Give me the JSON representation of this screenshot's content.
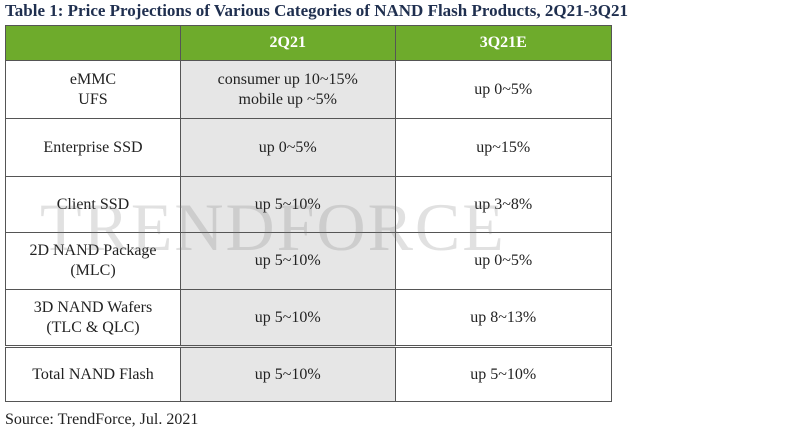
{
  "title": "Table 1: Price Projections of Various Categories of NAND Flash Products, 2Q21-3Q21",
  "table": {
    "header": [
      "",
      "2Q21",
      "3Q21E"
    ],
    "rows": [
      [
        [
          "eMMC",
          "UFS"
        ],
        [
          "consumer up 10~15%",
          "mobile up ~5%"
        ],
        [
          "up 0~5%"
        ]
      ],
      [
        [
          "Enterprise SSD"
        ],
        [
          "up 0~5%"
        ],
        [
          "up~15%"
        ]
      ],
      [
        [
          "Client SSD"
        ],
        [
          "up 5~10%"
        ],
        [
          "up 3~8%"
        ]
      ],
      [
        [
          "2D NAND Package",
          "(MLC)"
        ],
        [
          "up 5~10%"
        ],
        [
          "up 0~5%"
        ]
      ],
      [
        [
          "3D NAND Wafers",
          "(TLC & QLC)"
        ],
        [
          "up 5~10%"
        ],
        [
          "up 8~13%"
        ]
      ],
      [
        [
          "Total NAND Flash"
        ],
        [
          "up 5~10%"
        ],
        [
          "up 5~10%"
        ]
      ]
    ]
  },
  "watermark": "TRENDFORCE",
  "source": "Source: TrendForce, Jul. 2021"
}
